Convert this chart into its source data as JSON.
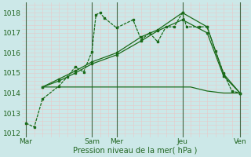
{
  "background_color": "#cce8e8",
  "grid_color_minor": "#e8c8c8",
  "grid_color_major": "#d4a0a0",
  "line_color": "#1a6b1a",
  "ylim": [
    1011.8,
    1018.5
  ],
  "yticks": [
    1012,
    1013,
    1014,
    1015,
    1016,
    1017,
    1018
  ],
  "xlabel": "Pression niveau de la mer( hPa )",
  "day_labels": [
    "Mar",
    "Sam",
    "Mer",
    "Jeu",
    "Ven"
  ],
  "day_positions": [
    0,
    8,
    11,
    19,
    26
  ],
  "total_points": 27,
  "line1_x": [
    0,
    1,
    2,
    4,
    5,
    6,
    7,
    8,
    8.5,
    9,
    9.5,
    11,
    13,
    14,
    15,
    16,
    17,
    18,
    19,
    19.5,
    21,
    22,
    23,
    24,
    25,
    26
  ],
  "line1_y": [
    1012.5,
    1012.3,
    1013.7,
    1014.35,
    1014.8,
    1015.3,
    1015.05,
    1016.05,
    1017.9,
    1018.0,
    1017.75,
    1017.25,
    1017.65,
    1016.65,
    1017.0,
    1016.55,
    1017.3,
    1017.3,
    1018.0,
    1017.3,
    1017.3,
    1017.3,
    1016.1,
    1015.0,
    1014.1,
    1014.0
  ],
  "line2_x": [
    2,
    4,
    6,
    8,
    10,
    12,
    14,
    16,
    18,
    20,
    22,
    24,
    26
  ],
  "line2_y": [
    1014.3,
    1014.3,
    1014.3,
    1014.3,
    1014.3,
    1014.3,
    1014.3,
    1014.3,
    1014.3,
    1014.3,
    1014.1,
    1014.0,
    1014.0
  ],
  "line3_x": [
    2,
    4,
    6,
    8,
    11,
    14,
    16,
    19,
    22,
    24,
    26
  ],
  "line3_y": [
    1014.3,
    1014.6,
    1015.0,
    1015.45,
    1015.9,
    1016.6,
    1017.1,
    1017.65,
    1017.0,
    1014.85,
    1014.0
  ],
  "line4_x": [
    2,
    4,
    6,
    8,
    11,
    14,
    16,
    19,
    22,
    24,
    26
  ],
  "line4_y": [
    1014.3,
    1014.7,
    1015.1,
    1015.55,
    1016.0,
    1016.8,
    1017.15,
    1018.0,
    1017.3,
    1014.95,
    1014.0
  ]
}
